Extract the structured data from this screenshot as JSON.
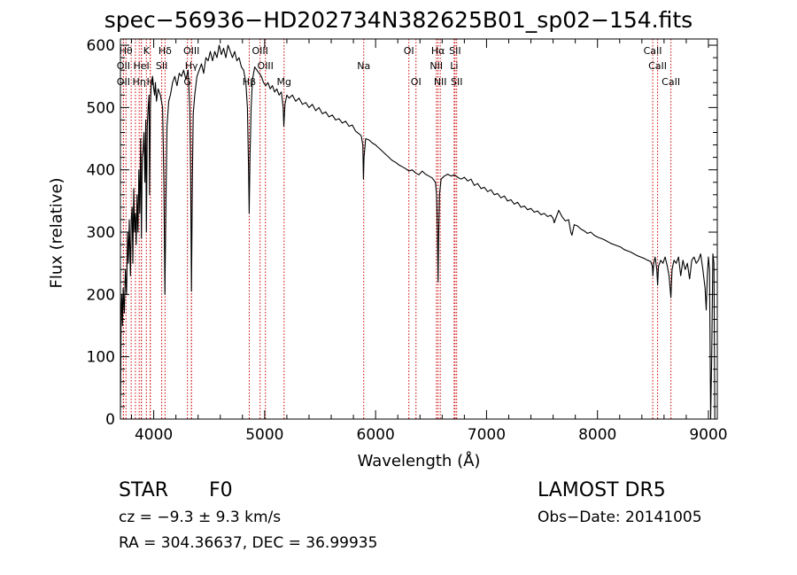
{
  "chart_data": {
    "type": "line",
    "title": "spec−56936−HD202734N382625B01_sp02−154.fits",
    "xlabel": "Wavelength (Å)",
    "ylabel": "Flux (relative)",
    "xlim": [
      3700,
      9080
    ],
    "ylim": [
      0,
      610
    ],
    "xticks": [
      4000,
      5000,
      6000,
      7000,
      8000,
      9000
    ],
    "yticks": [
      0,
      100,
      200,
      300,
      400,
      500,
      600
    ],
    "grid": false,
    "series": [
      {
        "points": [
          [
            3700,
            10
          ],
          [
            3702,
            60
          ],
          [
            3706,
            170
          ],
          [
            3712,
            200
          ],
          [
            3718,
            150
          ],
          [
            3725,
            210
          ],
          [
            3735,
            170
          ],
          [
            3745,
            240
          ],
          [
            3755,
            200
          ],
          [
            3765,
            300
          ],
          [
            3772,
            250
          ],
          [
            3780,
            320
          ],
          [
            3790,
            230
          ],
          [
            3797,
            320
          ],
          [
            3805,
            340
          ],
          [
            3812,
            250
          ],
          [
            3820,
            370
          ],
          [
            3828,
            300
          ],
          [
            3835,
            330
          ],
          [
            3842,
            280
          ],
          [
            3850,
            360
          ],
          [
            3858,
            300
          ],
          [
            3866,
            400
          ],
          [
            3874,
            330
          ],
          [
            3882,
            450
          ],
          [
            3889,
            290
          ],
          [
            3896,
            420
          ],
          [
            3904,
            430
          ],
          [
            3912,
            460
          ],
          [
            3920,
            380
          ],
          [
            3928,
            480
          ],
          [
            3934,
            300
          ],
          [
            3942,
            470
          ],
          [
            3950,
            500
          ],
          [
            3958,
            520
          ],
          [
            3963,
            360
          ],
          [
            3970,
            500
          ],
          [
            3978,
            540
          ],
          [
            3990,
            550
          ],
          [
            4000,
            530
          ],
          [
            4008,
            520
          ],
          [
            4015,
            540
          ],
          [
            4025,
            510
          ],
          [
            4040,
            530
          ],
          [
            4060,
            520
          ],
          [
            4080,
            500
          ],
          [
            4092,
            380
          ],
          [
            4101,
            200
          ],
          [
            4110,
            350
          ],
          [
            4120,
            470
          ],
          [
            4135,
            510
          ],
          [
            4150,
            520
          ],
          [
            4170,
            540
          ],
          [
            4190,
            550
          ],
          [
            4210,
            535
          ],
          [
            4230,
            555
          ],
          [
            4250,
            550
          ],
          [
            4270,
            560
          ],
          [
            4290,
            545
          ],
          [
            4310,
            560
          ],
          [
            4325,
            500
          ],
          [
            4333,
            390
          ],
          [
            4340,
            205
          ],
          [
            4348,
            380
          ],
          [
            4356,
            490
          ],
          [
            4370,
            520
          ],
          [
            4390,
            550
          ],
          [
            4410,
            560
          ],
          [
            4430,
            570
          ],
          [
            4450,
            555
          ],
          [
            4470,
            580
          ],
          [
            4490,
            575
          ],
          [
            4510,
            590
          ],
          [
            4530,
            575
          ],
          [
            4550,
            590
          ],
          [
            4570,
            580
          ],
          [
            4590,
            600
          ],
          [
            4610,
            585
          ],
          [
            4630,
            595
          ],
          [
            4650,
            580
          ],
          [
            4670,
            600
          ],
          [
            4690,
            590
          ],
          [
            4710,
            580
          ],
          [
            4730,
            590
          ],
          [
            4750,
            575
          ],
          [
            4770,
            580
          ],
          [
            4790,
            565
          ],
          [
            4810,
            560
          ],
          [
            4830,
            540
          ],
          [
            4845,
            500
          ],
          [
            4855,
            400
          ],
          [
            4861,
            330
          ],
          [
            4868,
            420
          ],
          [
            4878,
            500
          ],
          [
            4890,
            545
          ],
          [
            4910,
            565
          ],
          [
            4930,
            560
          ],
          [
            4950,
            555
          ],
          [
            4970,
            550
          ],
          [
            4990,
            540
          ],
          [
            5010,
            535
          ],
          [
            5030,
            540
          ],
          [
            5050,
            530
          ],
          [
            5070,
            535
          ],
          [
            5090,
            525
          ],
          [
            5110,
            530
          ],
          [
            5130,
            520
          ],
          [
            5150,
            525
          ],
          [
            5167,
            500
          ],
          [
            5173,
            470
          ],
          [
            5183,
            505
          ],
          [
            5200,
            520
          ],
          [
            5220,
            515
          ],
          [
            5250,
            520
          ],
          [
            5280,
            510
          ],
          [
            5310,
            515
          ],
          [
            5340,
            505
          ],
          [
            5370,
            508
          ],
          [
            5400,
            500
          ],
          [
            5430,
            505
          ],
          [
            5460,
            495
          ],
          [
            5490,
            500
          ],
          [
            5520,
            490
          ],
          [
            5550,
            493
          ],
          [
            5580,
            485
          ],
          [
            5610,
            488
          ],
          [
            5640,
            480
          ],
          [
            5670,
            482
          ],
          [
            5700,
            475
          ],
          [
            5730,
            478
          ],
          [
            5760,
            470
          ],
          [
            5790,
            472
          ],
          [
            5820,
            462
          ],
          [
            5850,
            458
          ],
          [
            5870,
            455
          ],
          [
            5885,
            440
          ],
          [
            5890,
            385
          ],
          [
            5896,
            420
          ],
          [
            5910,
            450
          ],
          [
            5940,
            448
          ],
          [
            5970,
            443
          ],
          [
            6000,
            440
          ],
          [
            6030,
            435
          ],
          [
            6060,
            430
          ],
          [
            6090,
            425
          ],
          [
            6120,
            420
          ],
          [
            6150,
            415
          ],
          [
            6180,
            412
          ],
          [
            6210,
            408
          ],
          [
            6240,
            405
          ],
          [
            6270,
            402
          ],
          [
            6300,
            398
          ],
          [
            6330,
            400
          ],
          [
            6360,
            395
          ],
          [
            6390,
            392
          ],
          [
            6420,
            398
          ],
          [
            6450,
            393
          ],
          [
            6480,
            390
          ],
          [
            6510,
            387
          ],
          [
            6540,
            380
          ],
          [
            6550,
            360
          ],
          [
            6558,
            300
          ],
          [
            6563,
            220
          ],
          [
            6568,
            290
          ],
          [
            6576,
            360
          ],
          [
            6590,
            385
          ],
          [
            6620,
            390
          ],
          [
            6650,
            393
          ],
          [
            6680,
            390
          ],
          [
            6710,
            392
          ],
          [
            6740,
            388
          ],
          [
            6770,
            385
          ],
          [
            6800,
            388
          ],
          [
            6830,
            382
          ],
          [
            6860,
            385
          ],
          [
            6890,
            375
          ],
          [
            6920,
            378
          ],
          [
            6950,
            370
          ],
          [
            6980,
            372
          ],
          [
            7010,
            365
          ],
          [
            7040,
            368
          ],
          [
            7070,
            360
          ],
          [
            7100,
            362
          ],
          [
            7130,
            355
          ],
          [
            7160,
            358
          ],
          [
            7190,
            350
          ],
          [
            7220,
            352
          ],
          [
            7250,
            345
          ],
          [
            7280,
            348
          ],
          [
            7310,
            340
          ],
          [
            7340,
            342
          ],
          [
            7370,
            336
          ],
          [
            7400,
            338
          ],
          [
            7430,
            332
          ],
          [
            7460,
            334
          ],
          [
            7490,
            328
          ],
          [
            7520,
            330
          ],
          [
            7550,
            325
          ],
          [
            7580,
            327
          ],
          [
            7600,
            322
          ],
          [
            7610,
            315
          ],
          [
            7620,
            320
          ],
          [
            7650,
            335
          ],
          [
            7680,
            325
          ],
          [
            7710,
            318
          ],
          [
            7740,
            320
          ],
          [
            7760,
            300
          ],
          [
            7770,
            295
          ],
          [
            7790,
            312
          ],
          [
            7820,
            310
          ],
          [
            7850,
            305
          ],
          [
            7880,
            302
          ],
          [
            7910,
            298
          ],
          [
            7940,
            300
          ],
          [
            7970,
            295
          ],
          [
            8000,
            292
          ],
          [
            8030,
            290
          ],
          [
            8060,
            288
          ],
          [
            8090,
            285
          ],
          [
            8120,
            282
          ],
          [
            8150,
            280
          ],
          [
            8180,
            278
          ],
          [
            8210,
            276
          ],
          [
            8240,
            272
          ],
          [
            8270,
            270
          ],
          [
            8300,
            268
          ],
          [
            8330,
            265
          ],
          [
            8360,
            262
          ],
          [
            8390,
            260
          ],
          [
            8420,
            258
          ],
          [
            8450,
            255
          ],
          [
            8480,
            253
          ],
          [
            8495,
            245
          ],
          [
            8500,
            230
          ],
          [
            8507,
            250
          ],
          [
            8520,
            260
          ],
          [
            8535,
            240
          ],
          [
            8542,
            215
          ],
          [
            8550,
            245
          ],
          [
            8570,
            255
          ],
          [
            8590,
            250
          ],
          [
            8610,
            260
          ],
          [
            8630,
            245
          ],
          [
            8645,
            230
          ],
          [
            8662,
            195
          ],
          [
            8672,
            240
          ],
          [
            8690,
            255
          ],
          [
            8710,
            250
          ],
          [
            8730,
            260
          ],
          [
            8750,
            230
          ],
          [
            8770,
            255
          ],
          [
            8790,
            240
          ],
          [
            8810,
            250
          ],
          [
            8830,
            225
          ],
          [
            8850,
            255
          ],
          [
            8870,
            260
          ],
          [
            8890,
            250
          ],
          [
            8910,
            255
          ],
          [
            8930,
            265
          ],
          [
            8950,
            240
          ],
          [
            8970,
            210
          ],
          [
            8980,
            175
          ],
          [
            8990,
            230
          ],
          [
            9000,
            260
          ],
          [
            9010,
            240
          ],
          [
            9020,
            0
          ],
          [
            9030,
            100
          ],
          [
            9040,
            265
          ],
          [
            9050,
            250
          ],
          [
            9058,
            0
          ]
        ]
      }
    ],
    "lines": [
      {
        "x": 3750,
        "label": "Hθ",
        "row": 0
      },
      {
        "x": 3797,
        "label": "",
        "row": 0
      },
      {
        "x": 3835,
        "label": "",
        "row": 0
      },
      {
        "x": 3889,
        "label": "",
        "row": 0
      },
      {
        "x": 3934,
        "label": "K",
        "row": 0
      },
      {
        "x": 3969,
        "label": "",
        "row": 0
      },
      {
        "x": 4102,
        "label": "Hδ",
        "row": 0
      },
      {
        "x": 4340,
        "label": "OIII",
        "row": 0
      },
      {
        "x": 4959,
        "label": "OIII",
        "row": 0
      },
      {
        "x": 6300,
        "label": "OI",
        "row": 0
      },
      {
        "x": 6563,
        "label": "Hα",
        "row": 0
      },
      {
        "x": 6716,
        "label": "SII",
        "row": 0
      },
      {
        "x": 8498,
        "label": "CaII",
        "row": 0
      },
      {
        "x": 3727,
        "label": "OII",
        "row": 1
      },
      {
        "x": 3889,
        "label": "HeI",
        "row": 1
      },
      {
        "x": 4072,
        "label": "SII",
        "row": 1
      },
      {
        "x": 4340,
        "label": "Hγ",
        "row": 1
      },
      {
        "x": 5007,
        "label": "OIII",
        "row": 1
      },
      {
        "x": 5893,
        "label": "Na",
        "row": 1
      },
      {
        "x": 6548,
        "label": "NII",
        "row": 1
      },
      {
        "x": 6708,
        "label": "Li",
        "row": 1
      },
      {
        "x": 8542,
        "label": "CaII",
        "row": 1
      },
      {
        "x": 3727,
        "label": "OII",
        "row": 2
      },
      {
        "x": 3869,
        "label": "Hη",
        "row": 2
      },
      {
        "x": 3969,
        "label": "H",
        "row": 2
      },
      {
        "x": 4304,
        "label": "G",
        "row": 2
      },
      {
        "x": 4861,
        "label": "Hβ",
        "row": 2
      },
      {
        "x": 5175,
        "label": "Mg",
        "row": 2
      },
      {
        "x": 6364,
        "label": "OI",
        "row": 2
      },
      {
        "x": 6583,
        "label": "NII",
        "row": 2
      },
      {
        "x": 6731,
        "label": "SII",
        "row": 2
      },
      {
        "x": 8662,
        "label": "CaII",
        "row": 2
      }
    ]
  },
  "info": {
    "class": "STAR",
    "subclass": "F0",
    "cz": "cz = −9.3 ± 9.3 km/s",
    "radec": "RA = 304.36637, DEC =  36.99935",
    "survey": "LAMOST  DR5",
    "obsdate": "Obs−Date: 20141005"
  }
}
